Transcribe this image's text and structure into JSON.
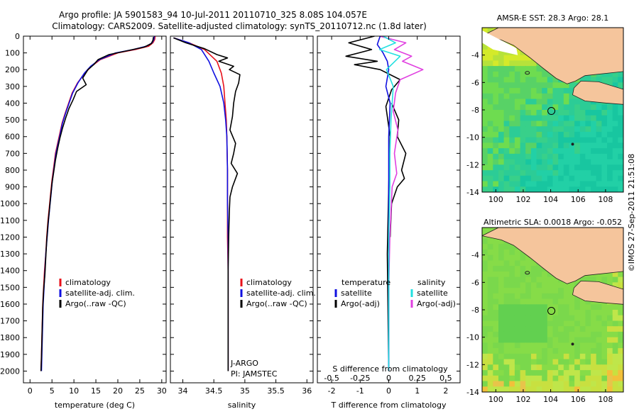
{
  "header": {
    "line1": "Argo profile: JA 5901583_94 10-Jul-2011 20110710_325 8.08S 104.057E",
    "line2": "Climatology: CARS2009. Satellite-adjusted climatology: synTS_20110712.nc (1.8d later)"
  },
  "credit": "©IMOS 27-Sep-2011 21:51:08",
  "colors": {
    "climatology": "#e8101a",
    "satellite": "#1010e0",
    "argo": "#000000",
    "s_satellite": "#22e0e0",
    "s_argo": "#e040e0",
    "land": "#f5c59c",
    "coast": "#202020"
  },
  "chart_data": [
    {
      "id": "temperature",
      "type": "line",
      "xlabel": "temperature (deg C)",
      "xlim": [
        -1.5,
        31
      ],
      "xticks": [
        0,
        5,
        10,
        15,
        20,
        25,
        30
      ],
      "ylim": [
        2070,
        0
      ],
      "yticks": [
        0,
        100,
        200,
        300,
        400,
        500,
        600,
        700,
        800,
        900,
        1000,
        1100,
        1200,
        1300,
        1400,
        1500,
        1600,
        1700,
        1800,
        1900,
        2000
      ],
      "legend": [
        "climatology",
        "satellite-adj. clim.",
        "Argo(..raw -QC)"
      ],
      "series": [
        {
          "name": "climatology",
          "x": [
            28.5,
            28.4,
            28.0,
            27.0,
            24.0,
            20.0,
            16.0,
            14.0,
            12.5,
            10.8,
            9.6,
            8.8,
            8.0,
            7.3,
            6.8,
            6.3,
            5.8,
            5.4,
            5.0,
            4.7,
            4.4,
            4.1,
            3.8,
            3.6,
            3.3,
            3.1,
            2.9,
            2.8,
            2.7,
            2.6,
            2.5
          ],
          "y": [
            0,
            20,
            40,
            60,
            80,
            100,
            140,
            180,
            220,
            280,
            340,
            400,
            460,
            520,
            580,
            640,
            700,
            780,
            860,
            940,
            1020,
            1100,
            1200,
            1300,
            1400,
            1500,
            1600,
            1700,
            1800,
            1900,
            2000
          ]
        },
        {
          "name": "satellite-adj. clim.",
          "x": [
            28.3,
            28.2,
            27.8,
            26.5,
            23.5,
            19.5,
            15.8,
            13.8,
            12.4,
            10.9,
            9.7,
            8.9,
            8.1,
            7.4,
            6.9,
            6.4,
            5.9,
            5.5,
            5.1,
            4.8,
            4.5,
            4.2,
            3.9,
            3.6,
            3.4,
            3.2,
            3.0,
            2.9,
            2.8,
            2.7,
            2.6
          ],
          "y": [
            0,
            20,
            40,
            60,
            80,
            100,
            140,
            180,
            220,
            280,
            340,
            400,
            460,
            520,
            580,
            640,
            700,
            780,
            860,
            940,
            1020,
            1100,
            1200,
            1300,
            1400,
            1500,
            1600,
            1700,
            1800,
            1900,
            2000
          ]
        },
        {
          "name": "Argo(..raw -QC)",
          "x": [
            28.1,
            28.0,
            27.6,
            26.0,
            22.5,
            18.0,
            15.5,
            14.5,
            13.2,
            12.0,
            12.8,
            10.6,
            9.8,
            8.9,
            8.1,
            7.4,
            6.8,
            6.3,
            5.8,
            5.4,
            5.0,
            4.7,
            4.4,
            4.1,
            3.8,
            3.6,
            3.4,
            3.1,
            2.9,
            2.8,
            2.7,
            2.6,
            2.5
          ],
          "y": [
            5,
            25,
            45,
            65,
            85,
            110,
            140,
            170,
            200,
            250,
            290,
            330,
            380,
            430,
            490,
            550,
            610,
            670,
            740,
            810,
            880,
            960,
            1040,
            1120,
            1220,
            1320,
            1420,
            1520,
            1620,
            1720,
            1820,
            1920,
            2000
          ]
        }
      ]
    },
    {
      "id": "salinity",
      "type": "line",
      "xlabel": "salinity",
      "xlim": [
        33.8,
        36.1
      ],
      "xticks": [
        34,
        34.5,
        35,
        35.5,
        36
      ],
      "xticklabels": [
        "34",
        "34.5",
        "35",
        "35.5",
        "36"
      ],
      "ylim": [
        2070,
        0
      ],
      "legend": [
        "climatology",
        "satellite-adj. clim.",
        "Argo(..raw -QC)"
      ],
      "annotations": [
        "J-ARGO",
        "PI: JAMSTEC"
      ],
      "series": [
        {
          "name": "climatology",
          "x": [
            33.85,
            34.1,
            34.35,
            34.55,
            34.62,
            34.66,
            34.68,
            34.7,
            34.71,
            34.72,
            34.72,
            34.72,
            34.73,
            34.73,
            34.73,
            34.73,
            34.73
          ],
          "y": [
            10,
            40,
            80,
            150,
            220,
            300,
            400,
            500,
            600,
            800,
            1000,
            1200,
            1400,
            1600,
            1800,
            1950,
            2000
          ]
        },
        {
          "name": "satellite-adj. clim.",
          "x": [
            33.85,
            34.1,
            34.3,
            34.42,
            34.5,
            34.6,
            34.66,
            34.69,
            34.71,
            34.72,
            34.72,
            34.73,
            34.73,
            34.73,
            34.73,
            34.73,
            34.73
          ],
          "y": [
            10,
            40,
            80,
            150,
            220,
            300,
            400,
            500,
            600,
            800,
            1000,
            1200,
            1400,
            1600,
            1800,
            1950,
            2000
          ]
        },
        {
          "name": "Argo(..raw -QC)",
          "x": [
            33.85,
            34.05,
            34.35,
            34.55,
            34.72,
            34.58,
            34.82,
            34.75,
            34.92,
            34.9,
            34.85,
            34.82,
            34.8,
            34.76,
            34.85,
            34.82,
            34.78,
            34.88,
            34.8,
            34.76,
            34.75,
            34.74,
            34.73,
            34.73,
            34.73
          ],
          "y": [
            10,
            40,
            75,
            110,
            130,
            150,
            180,
            200,
            230,
            280,
            330,
            400,
            480,
            560,
            640,
            700,
            760,
            820,
            900,
            960,
            1050,
            1200,
            1400,
            1700,
            2000
          ]
        }
      ]
    },
    {
      "id": "difference",
      "type": "line",
      "xlabel": "T difference from climatology",
      "xlabel_top": "S difference from climatology",
      "xlim": [
        -2.5,
        2.5
      ],
      "xticks": [
        -2,
        -1,
        0,
        1,
        2
      ],
      "s_scale": 4,
      "s_ticks": [
        -0.5,
        -0.25,
        0,
        0.25,
        0.5
      ],
      "s_ticklabels": [
        "-0.5",
        "-0.25",
        "0",
        "0.25",
        "0.5"
      ],
      "ylim": [
        2070,
        0
      ],
      "legend_groups": [
        {
          "title": "temperature",
          "items": [
            "satellite",
            "Argo(-adj)"
          ]
        },
        {
          "title": "salinity",
          "items": [
            "satellite",
            "Argo(-adj)"
          ]
        }
      ],
      "series": [
        {
          "name": "temperature satellite",
          "x": [
            -0.3,
            -0.4,
            -0.2,
            -0.05,
            0.0,
            -0.1,
            0.05,
            0.0,
            0.0,
            0.0,
            0.0,
            0.0
          ],
          "y": [
            0,
            50,
            100,
            150,
            200,
            300,
            400,
            600,
            900,
            1200,
            1600,
            2000
          ]
        },
        {
          "name": "temperature Argo(-adj)",
          "x": [
            -0.5,
            -1.4,
            -0.6,
            -1.5,
            -0.4,
            -1.2,
            -0.3,
            0.4,
            0.1,
            -0.1,
            0.05,
            0.0,
            -0.05,
            0.0
          ],
          "y": [
            0,
            40,
            80,
            120,
            150,
            170,
            200,
            260,
            320,
            420,
            600,
            900,
            1300,
            2000
          ]
        },
        {
          "name": "salinity satellite",
          "x": [
            -0.05,
            0.06,
            -0.08,
            0.1,
            -0.02,
            0.04,
            0.02,
            0.01,
            0.01,
            0.0,
            0.0,
            0.0
          ],
          "y": [
            0,
            40,
            80,
            120,
            200,
            300,
            500,
            700,
            900,
            1200,
            1600,
            2000
          ]
        },
        {
          "name": "salinity Argo(-adj)",
          "x": [
            -0.08,
            0.15,
            0.05,
            0.2,
            0.12,
            0.3,
            0.1,
            0.06,
            0.04,
            0.08,
            0.05,
            0.07,
            0.03,
            0.02,
            0.01,
            0.0,
            0.0
          ],
          "y": [
            0,
            40,
            80,
            120,
            150,
            200,
            260,
            340,
            450,
            560,
            700,
            820,
            900,
            1050,
            1200,
            1500,
            2000
          ]
        },
        {
          "name": "temperature Argo(-adj) deep",
          "x": [
            0.1,
            0.35,
            0.3,
            0.6,
            0.45,
            0.55,
            0.3,
            0.1,
            0.05
          ],
          "y": [
            400,
            500,
            600,
            700,
            800,
            850,
            900,
            1000,
            1200
          ]
        }
      ]
    },
    {
      "id": "map_sst",
      "type": "heatmap",
      "title": "AMSR-E SST: 28.3 Argo: 28.1",
      "xlim": [
        99,
        109.3
      ],
      "ylim": [
        -14,
        -2
      ],
      "xticks": [
        100,
        102,
        104,
        106,
        108
      ],
      "yticks": [
        -4,
        -6,
        -8,
        -10,
        -12,
        -14
      ],
      "profile_marker": [
        104.05,
        -8.08
      ]
    },
    {
      "id": "map_sla",
      "type": "heatmap",
      "title": "Altimetric SLA: 0.0018 Argo: -0.052",
      "xlim": [
        99,
        109.3
      ],
      "ylim": [
        -14,
        -2
      ],
      "xticks": [
        100,
        102,
        104,
        106,
        108
      ],
      "yticks": [
        -4,
        -6,
        -8,
        -10,
        -12,
        -14
      ],
      "profile_marker": [
        104.05,
        -8.08
      ]
    }
  ]
}
